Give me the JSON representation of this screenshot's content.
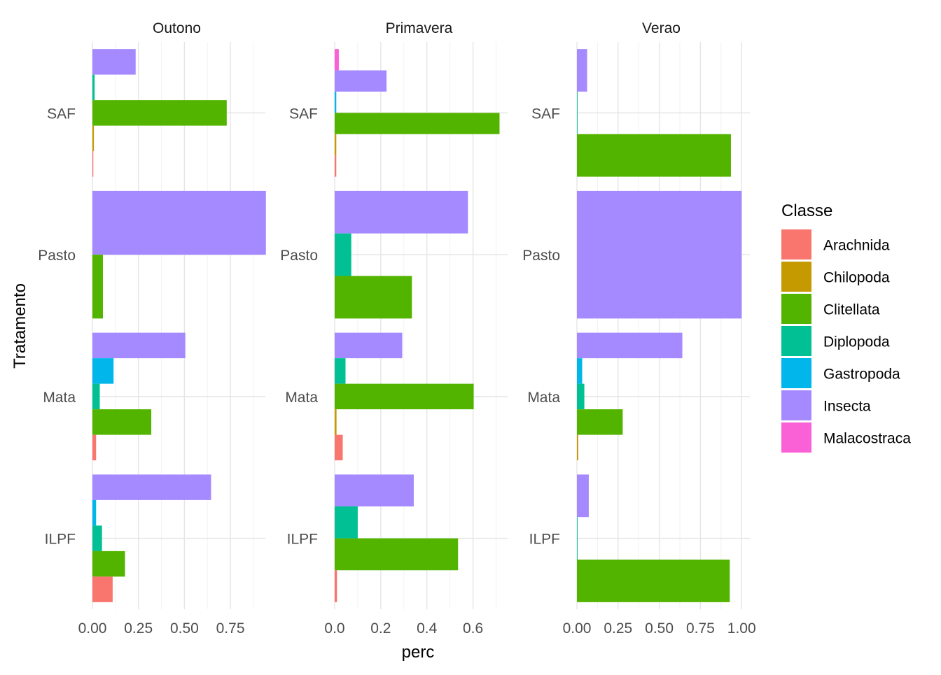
{
  "chart_data": {
    "type": "bar",
    "orientation": "horizontal",
    "xlabel": "perc",
    "ylabel": "Tratamento",
    "legend": {
      "title": "Classe",
      "position": "right",
      "entries": [
        {
          "name": "Arachnida",
          "color": "#F8766D"
        },
        {
          "name": "Chilopoda",
          "color": "#C49A00"
        },
        {
          "name": "Clitellata",
          "color": "#53B400"
        },
        {
          "name": "Diplopoda",
          "color": "#00C094"
        },
        {
          "name": "Gastropoda",
          "color": "#00B6EB"
        },
        {
          "name": "Insecta",
          "color": "#A58AFF"
        },
        {
          "name": "Malacostraca",
          "color": "#FB61D7"
        }
      ]
    },
    "categories": [
      "SAF",
      "Pasto",
      "Mata",
      "ILPF"
    ],
    "grid": true,
    "panels": [
      {
        "title": "Outono",
        "xlim": [
          0,
          0.94
        ],
        "ticks": [
          0,
          0.25,
          0.5,
          0.75
        ],
        "tick_labels": [
          "0.00",
          "0.25",
          "0.50",
          "0.75"
        ],
        "groups": [
          {
            "category": "SAF",
            "bars": [
              {
                "classe": "Arachnida",
                "value": 0.005
              },
              {
                "classe": "Chilopoda",
                "value": 0.008
              },
              {
                "classe": "Clitellata",
                "value": 0.73
              },
              {
                "classe": "Diplopoda",
                "value": 0.012
              },
              {
                "classe": "Insecta",
                "value": 0.235
              }
            ]
          },
          {
            "category": "Pasto",
            "bars": [
              {
                "classe": "Clitellata",
                "value": 0.057
              },
              {
                "classe": "Insecta",
                "value": 0.943
              }
            ]
          },
          {
            "category": "Mata",
            "bars": [
              {
                "classe": "Arachnida",
                "value": 0.02
              },
              {
                "classe": "Clitellata",
                "value": 0.32
              },
              {
                "classe": "Diplopoda",
                "value": 0.04
              },
              {
                "classe": "Gastropoda",
                "value": 0.115
              },
              {
                "classe": "Insecta",
                "value": 0.505
              }
            ]
          },
          {
            "category": "ILPF",
            "bars": [
              {
                "classe": "Arachnida",
                "value": 0.11
              },
              {
                "classe": "Clitellata",
                "value": 0.177
              },
              {
                "classe": "Diplopoda",
                "value": 0.052
              },
              {
                "classe": "Gastropoda",
                "value": 0.02
              },
              {
                "classe": "Insecta",
                "value": 0.645
              }
            ]
          }
        ]
      },
      {
        "title": "Primavera",
        "xlim": [
          0,
          0.75
        ],
        "ticks": [
          0,
          0.2,
          0.4,
          0.6
        ],
        "tick_labels": [
          "0.0",
          "0.2",
          "0.4",
          "0.6"
        ],
        "groups": [
          {
            "category": "SAF",
            "bars": [
              {
                "classe": "Arachnida",
                "value": 0.007
              },
              {
                "classe": "Chilopoda",
                "value": 0.007
              },
              {
                "classe": "Clitellata",
                "value": 0.715
              },
              {
                "classe": "Gastropoda",
                "value": 0.007
              },
              {
                "classe": "Insecta",
                "value": 0.225
              },
              {
                "classe": "Malacostraca",
                "value": 0.018
              }
            ]
          },
          {
            "category": "Pasto",
            "bars": [
              {
                "classe": "Clitellata",
                "value": 0.335
              },
              {
                "classe": "Diplopoda",
                "value": 0.072
              },
              {
                "classe": "Insecta",
                "value": 0.578
              }
            ]
          },
          {
            "category": "Mata",
            "bars": [
              {
                "classe": "Arachnida",
                "value": 0.035
              },
              {
                "classe": "Chilopoda",
                "value": 0.008
              },
              {
                "classe": "Clitellata",
                "value": 0.603
              },
              {
                "classe": "Diplopoda",
                "value": 0.047
              },
              {
                "classe": "Insecta",
                "value": 0.293
              }
            ]
          },
          {
            "category": "ILPF",
            "bars": [
              {
                "classe": "Arachnida",
                "value": 0.01
              },
              {
                "classe": "Clitellata",
                "value": 0.535
              },
              {
                "classe": "Diplopoda",
                "value": 0.1
              },
              {
                "classe": "Insecta",
                "value": 0.343
              }
            ]
          }
        ]
      },
      {
        "title": "Verao",
        "xlim": [
          0,
          1.05
        ],
        "ticks": [
          0,
          0.25,
          0.5,
          0.75,
          1.0
        ],
        "tick_labels": [
          "0.00",
          "0.25",
          "0.50",
          "0.75",
          "1.00"
        ],
        "groups": [
          {
            "category": "SAF",
            "bars": [
              {
                "classe": "Clitellata",
                "value": 0.935
              },
              {
                "classe": "Diplopoda",
                "value": 0.004
              },
              {
                "classe": "Insecta",
                "value": 0.062
              }
            ]
          },
          {
            "category": "Pasto",
            "bars": [
              {
                "classe": "Insecta",
                "value": 1.0
              }
            ]
          },
          {
            "category": "Mata",
            "bars": [
              {
                "classe": "Chilopoda",
                "value": 0.008
              },
              {
                "classe": "Clitellata",
                "value": 0.278
              },
              {
                "classe": "Diplopoda",
                "value": 0.045
              },
              {
                "classe": "Gastropoda",
                "value": 0.032
              },
              {
                "classe": "Insecta",
                "value": 0.64
              }
            ]
          },
          {
            "category": "ILPF",
            "bars": [
              {
                "classe": "Clitellata",
                "value": 0.928
              },
              {
                "classe": "Diplopoda",
                "value": 0.004
              },
              {
                "classe": "Insecta",
                "value": 0.072
              }
            ]
          }
        ]
      }
    ]
  }
}
